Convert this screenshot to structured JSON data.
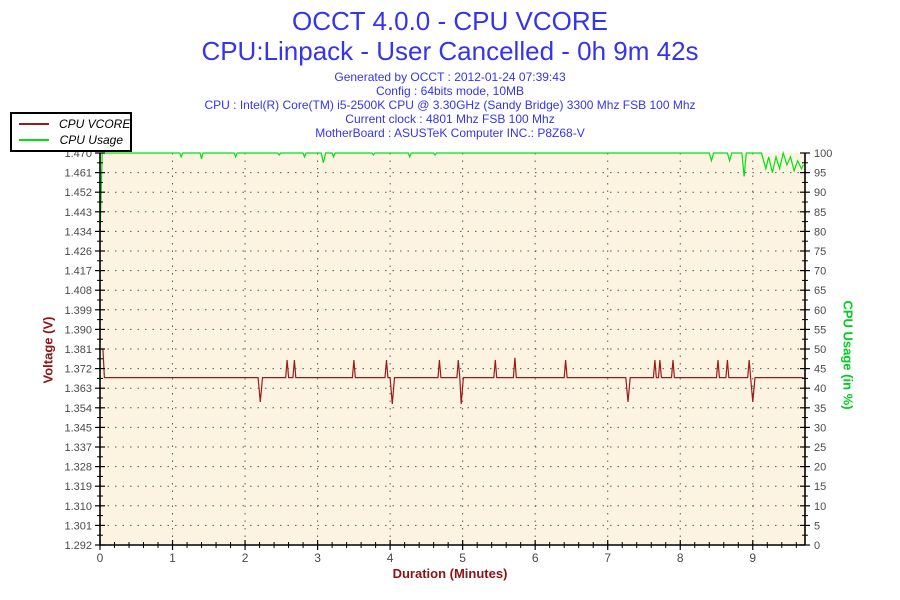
{
  "header": {
    "title": "OCCT 4.0.0 - CPU VCORE",
    "subtitle": "CPU:Linpack - User Cancelled - 0h 9m 42s",
    "info_lines": [
      "Generated by OCCT : 2012-01-24 07:39:43",
      "Config : 64bits mode, 10MB",
      "CPU : Intel(R) Core(TM) i5-2500K CPU @ 3.30GHz (Sandy Bridge) 3300 Mhz FSB 100 Mhz",
      "Current clock : 4801 Mhz FSB 100 Mhz",
      "MotherBoard : ASUSTeK Computer INC.: P8Z68-V"
    ],
    "title_color": "#3434EE"
  },
  "legend": {
    "items": [
      {
        "label": "CPU VCORE",
        "color": "#9C1A1A"
      },
      {
        "label": "CPU Usage",
        "color": "#00E114"
      }
    ]
  },
  "chart_data": {
    "type": "line",
    "title": "OCCT 4.0.0 - CPU VCORE",
    "plot_bg": "#FCF4E1",
    "grid": {
      "style": "dotted",
      "color": "#3F3F3F",
      "horizontal": true,
      "vertical": true
    },
    "x_axis": {
      "label": "Duration (Minutes)",
      "min": 0,
      "max": 9.72,
      "major_ticks": [
        "0",
        "1",
        "2",
        "3",
        "4",
        "5",
        "6",
        "7",
        "8",
        "9"
      ],
      "minor_step": 0.2,
      "label_color": "#8E1313"
    },
    "y_left": {
      "label": "Voltage (V)",
      "min": 1.292,
      "max": 1.47,
      "ticks": [
        "1.470",
        "1.461",
        "1.452",
        "1.443",
        "1.434",
        "1.426",
        "1.417",
        "1.408",
        "1.399",
        "1.390",
        "1.381",
        "1.372",
        "1.363",
        "1.354",
        "1.345",
        "1.337",
        "1.328",
        "1.319",
        "1.310",
        "1.301",
        "1.292"
      ],
      "label_color": "#8E1313"
    },
    "y_right": {
      "label": "CPU Usage (in %)",
      "min": 0,
      "max": 100,
      "ticks": [
        "100",
        "95",
        "90",
        "85",
        "80",
        "75",
        "70",
        "65",
        "60",
        "55",
        "50",
        "45",
        "40",
        "35",
        "30",
        "25",
        "20",
        "15",
        "10",
        "5",
        "0"
      ],
      "label_color": "#00CC22"
    },
    "series": [
      {
        "name": "CPU VCORE",
        "axis": "left",
        "color": "#9C1A1A",
        "points": [
          [
            0,
            1.381
          ],
          [
            0.04,
            1.381
          ],
          [
            0.06,
            1.368
          ],
          [
            2.18,
            1.368
          ],
          [
            2.21,
            1.357
          ],
          [
            2.24,
            1.368
          ],
          [
            2.56,
            1.368
          ],
          [
            2.58,
            1.376
          ],
          [
            2.6,
            1.368
          ],
          [
            2.66,
            1.368
          ],
          [
            2.68,
            1.376
          ],
          [
            2.7,
            1.368
          ],
          [
            3.48,
            1.368
          ],
          [
            3.5,
            1.376
          ],
          [
            3.52,
            1.368
          ],
          [
            3.93,
            1.368
          ],
          [
            3.95,
            1.376
          ],
          [
            3.97,
            1.368
          ],
          [
            4.0,
            1.368
          ],
          [
            4.03,
            1.356
          ],
          [
            4.06,
            1.368
          ],
          [
            4.66,
            1.368
          ],
          [
            4.68,
            1.376
          ],
          [
            4.7,
            1.368
          ],
          [
            4.92,
            1.368
          ],
          [
            4.94,
            1.376
          ],
          [
            4.96,
            1.368
          ],
          [
            4.98,
            1.356
          ],
          [
            5.01,
            1.368
          ],
          [
            5.43,
            1.368
          ],
          [
            5.45,
            1.376
          ],
          [
            5.47,
            1.368
          ],
          [
            5.7,
            1.368
          ],
          [
            5.72,
            1.377
          ],
          [
            5.74,
            1.368
          ],
          [
            6.4,
            1.368
          ],
          [
            6.42,
            1.376
          ],
          [
            6.44,
            1.368
          ],
          [
            7.25,
            1.368
          ],
          [
            7.28,
            1.357
          ],
          [
            7.31,
            1.368
          ],
          [
            7.63,
            1.368
          ],
          [
            7.65,
            1.376
          ],
          [
            7.67,
            1.368
          ],
          [
            7.7,
            1.368
          ],
          [
            7.72,
            1.376
          ],
          [
            7.74,
            1.368
          ],
          [
            7.88,
            1.368
          ],
          [
            7.9,
            1.376
          ],
          [
            7.92,
            1.368
          ],
          [
            8.5,
            1.368
          ],
          [
            8.52,
            1.376
          ],
          [
            8.54,
            1.368
          ],
          [
            8.63,
            1.368
          ],
          [
            8.65,
            1.376
          ],
          [
            8.67,
            1.368
          ],
          [
            8.93,
            1.368
          ],
          [
            8.95,
            1.376
          ],
          [
            8.97,
            1.368
          ],
          [
            9.0,
            1.357
          ],
          [
            9.03,
            1.368
          ],
          [
            9.7,
            1.368
          ]
        ]
      },
      {
        "name": "CPU Usage",
        "axis": "right",
        "color": "#00E114",
        "points": [
          [
            0,
            78
          ],
          [
            0.03,
            100
          ],
          [
            1.1,
            100
          ],
          [
            1.12,
            99
          ],
          [
            1.14,
            100
          ],
          [
            1.38,
            100
          ],
          [
            1.4,
            98.5
          ],
          [
            1.42,
            100
          ],
          [
            1.85,
            100
          ],
          [
            1.87,
            99
          ],
          [
            1.89,
            100
          ],
          [
            2.45,
            100
          ],
          [
            2.47,
            99.5
          ],
          [
            2.49,
            100
          ],
          [
            2.8,
            100
          ],
          [
            2.82,
            99
          ],
          [
            2.84,
            100
          ],
          [
            3.05,
            100
          ],
          [
            3.08,
            97.5
          ],
          [
            3.11,
            100
          ],
          [
            3.2,
            100
          ],
          [
            3.22,
            99
          ],
          [
            3.24,
            100
          ],
          [
            3.75,
            100
          ],
          [
            3.77,
            99.5
          ],
          [
            3.79,
            100
          ],
          [
            4.25,
            100
          ],
          [
            4.27,
            99
          ],
          [
            4.29,
            100
          ],
          [
            4.6,
            100
          ],
          [
            4.62,
            99.5
          ],
          [
            4.64,
            100
          ],
          [
            8.4,
            100
          ],
          [
            8.43,
            98
          ],
          [
            8.46,
            100
          ],
          [
            8.65,
            100
          ],
          [
            8.68,
            98
          ],
          [
            8.71,
            100
          ],
          [
            8.85,
            100
          ],
          [
            8.88,
            94
          ],
          [
            8.91,
            100
          ],
          [
            9.12,
            100
          ],
          [
            9.18,
            96
          ],
          [
            9.22,
            99
          ],
          [
            9.27,
            95
          ],
          [
            9.32,
            99
          ],
          [
            9.37,
            96
          ],
          [
            9.42,
            100
          ],
          [
            9.47,
            97
          ],
          [
            9.52,
            99
          ],
          [
            9.57,
            95.5
          ],
          [
            9.62,
            98
          ],
          [
            9.67,
            96
          ],
          [
            9.7,
            97
          ]
        ]
      }
    ],
    "tick_label_color": "#4B4B4B"
  }
}
